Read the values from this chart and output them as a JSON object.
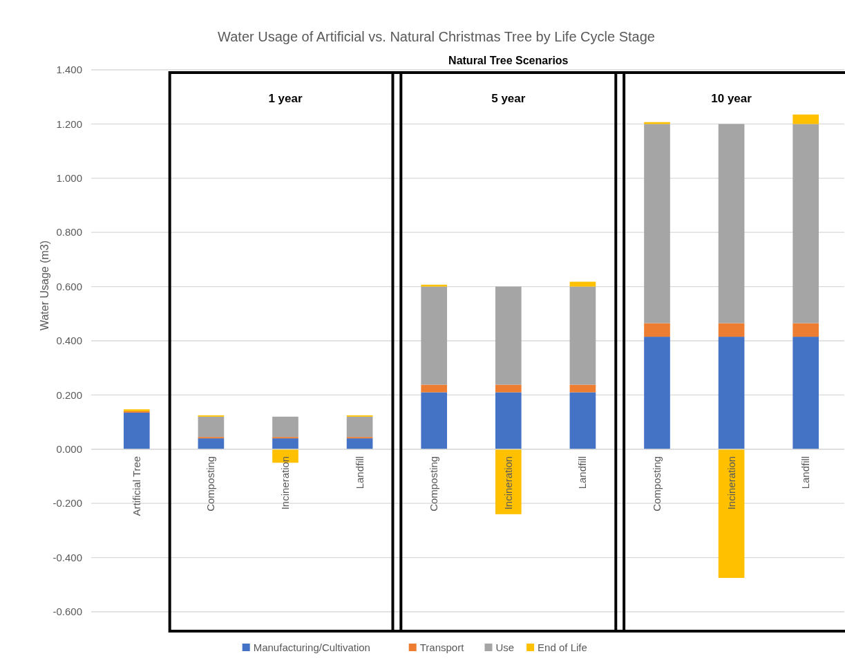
{
  "chart_data": {
    "type": "bar",
    "title": "Water Usage of Artificial vs. Natural Christmas Tree by Life Cycle Stage",
    "ylabel": "Water Usage (m3)",
    "categories": [
      "Artificial Tree",
      "Composting",
      "Incineration",
      "Landfill",
      "Composting",
      "Incineration",
      "Landfill",
      "Composting",
      "Incineration",
      "Landfill"
    ],
    "series": [
      {
        "name": "Manufacturing/Cultivation",
        "color": "#4472c4",
        "values": [
          0.135,
          0.04,
          0.04,
          0.04,
          0.21,
          0.21,
          0.21,
          0.415,
          0.415,
          0.415
        ]
      },
      {
        "name": "Transport",
        "color": "#ed7d31",
        "values": [
          0.005,
          0.005,
          0.005,
          0.005,
          0.028,
          0.028,
          0.028,
          0.05,
          0.05,
          0.05
        ]
      },
      {
        "name": "Use",
        "color": "#a5a5a5",
        "values": [
          0,
          0.075,
          0.075,
          0.075,
          0.362,
          0.362,
          0.362,
          0.735,
          0.735,
          0.735
        ]
      },
      {
        "name": "End of Life",
        "color": "#ffc000",
        "values": [
          0.007,
          0.005,
          -0.05,
          0.005,
          0.007,
          -0.24,
          0.018,
          0.007,
          -0.475,
          0.035
        ]
      }
    ],
    "stacked": true,
    "ylim": [
      -0.6,
      1.4
    ],
    "yticks": [
      {
        "value": -0.6,
        "label": "-0.600"
      },
      {
        "value": -0.4,
        "label": "-0.400"
      },
      {
        "value": -0.2,
        "label": "-0.200"
      },
      {
        "value": 0,
        "label": "0.000"
      },
      {
        "value": 0.2,
        "label": "0.200"
      },
      {
        "value": 0.4,
        "label": "0.400"
      },
      {
        "value": 0.6,
        "label": "0.600"
      },
      {
        "value": 0.8,
        "label": "0.800"
      },
      {
        "value": 1.0,
        "label": "1.000"
      },
      {
        "value": 1.2,
        "label": "1.200"
      },
      {
        "value": 1.4,
        "label": "1.400"
      }
    ],
    "grid": "y",
    "legend": "bottom",
    "annotations": [
      "Natural Tree Scenarios",
      "1 year",
      "5 year",
      "10 year"
    ]
  }
}
